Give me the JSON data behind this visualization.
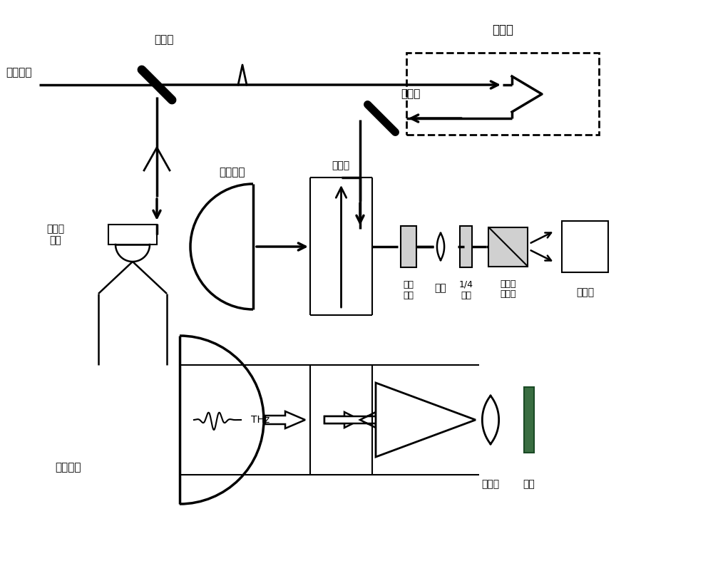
{
  "bg_color": "#ffffff",
  "labels": {
    "femtosecond": "飞秒激光",
    "beam_splitter": "分束镜",
    "delay_stage": "延迟台",
    "flat_mirror": "平面镜",
    "parabolic_mirror_top": "抛物面镜",
    "high_si": "高阻硅",
    "electro_optic": "电光\n晶体",
    "lens": "透镜",
    "quarter_wave": "1/4\n波片",
    "wollaston": "渥拉斯\n顿棱镜",
    "detector": "探测器",
    "photoconductive": "光电导\n天线",
    "parabolic_mirror_bot": "抛物面镜",
    "convex_lens": "凸透镜",
    "sample": "样品",
    "THz": "THz"
  }
}
